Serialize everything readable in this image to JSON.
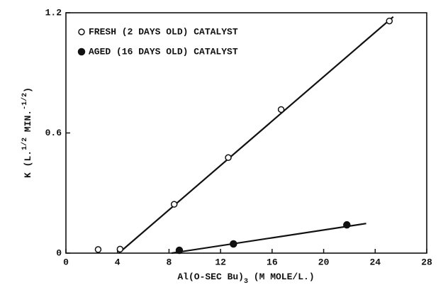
{
  "chart_data": {
    "type": "scatter",
    "xlabel_parts": [
      "Al(O-SEC Bu)",
      "3",
      " (M MOLE/L.)"
    ],
    "ylabel_parts": [
      "K (L.",
      "1/2",
      " MIN.",
      "-1/2",
      ")"
    ],
    "xlim": [
      0,
      28
    ],
    "xticks": [
      0,
      4,
      8,
      12,
      16,
      20,
      24,
      28
    ],
    "ylim": [
      0,
      1.2
    ],
    "yticks": [
      0,
      0.6,
      1.2
    ],
    "legend": "upper left",
    "series": [
      {
        "name": "FRESH (2 DAYS OLD) CATALYST",
        "marker": "open",
        "color": "#111111",
        "x": [
          2.5,
          4.2,
          8.4,
          12.6,
          16.7,
          25.1
        ],
        "values": [
          0.018,
          0.02,
          0.244,
          0.477,
          0.717,
          1.159
        ]
      },
      {
        "name": "AGED (16 DAYS OLD) CATALYST",
        "marker": "filled",
        "color": "#111111",
        "x": [
          8.8,
          13.0,
          21.8
        ],
        "values": [
          0.014,
          0.046,
          0.141
        ]
      }
    ],
    "lines": [
      {
        "color": "#111111",
        "x": [
          4.1,
          25.4
        ],
        "values": [
          0,
          1.18
        ]
      },
      {
        "color": "#111111",
        "x": [
          8.2,
          23.3
        ],
        "values": [
          0,
          0.148
        ]
      }
    ]
  }
}
